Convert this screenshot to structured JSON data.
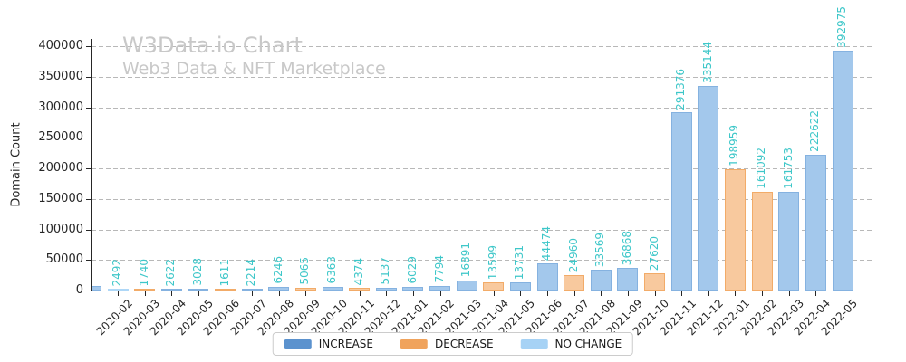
{
  "watermark": {
    "title": "W3Data.io Chart",
    "subtitle": "Web3 Data & NFT Marketplace",
    "color": "#c8c8c8"
  },
  "axes": {
    "ylabel": "Domain Count",
    "yticks": [
      0,
      50000,
      100000,
      150000,
      200000,
      250000,
      300000,
      350000,
      400000
    ],
    "grid_color": "#b8b8b8"
  },
  "legend": {
    "items": [
      {
        "label": "INCREASE",
        "color": "#5b92ce",
        "key": "INCREASE"
      },
      {
        "label": "DECREASE",
        "color": "#f0a35c",
        "key": "DECREASE"
      },
      {
        "label": "NO CHANGE",
        "color": "#a6d2f5",
        "key": "NOCHANGE"
      }
    ]
  },
  "chart_data": {
    "type": "bar",
    "title": "W3Data.io Chart",
    "subtitle": "Web3 Data & NFT Marketplace",
    "xlabel": "",
    "ylabel": "Domain Count",
    "categories": [
      "2020-02",
      "2020-03",
      "2020-04",
      "2020-05",
      "2020-06",
      "2020-07",
      "2020-08",
      "2020-09",
      "2020-10",
      "2020-11",
      "2020-12",
      "2021-01",
      "2021-02",
      "2021-03",
      "2021-04",
      "2021-05",
      "2021-06",
      "2021-07",
      "2021-08",
      "2021-09",
      "2021-10",
      "2021-11",
      "2021-12",
      "2022-01",
      "2022-02",
      "2022-03",
      "2022-04",
      "2022-05"
    ],
    "values": [
      2492,
      1740,
      2622,
      3028,
      1611,
      2214,
      6246,
      5065,
      6363,
      4374,
      5137,
      6029,
      7794,
      16891,
      13599,
      13731,
      44474,
      24960,
      33569,
      36868,
      27620,
      291376,
      335144,
      198959,
      161092,
      161753,
      222622,
      392975
    ],
    "change_series": [
      "NOCHANGE",
      "DECREASE",
      "INCREASE",
      "INCREASE",
      "DECREASE",
      "INCREASE",
      "INCREASE",
      "DECREASE",
      "INCREASE",
      "DECREASE",
      "INCREASE",
      "INCREASE",
      "INCREASE",
      "INCREASE",
      "DECREASE",
      "INCREASE",
      "INCREASE",
      "DECREASE",
      "INCREASE",
      "INCREASE",
      "DECREASE",
      "INCREASE",
      "INCREASE",
      "DECREASE",
      "DECREASE",
      "INCREASE",
      "INCREASE",
      "INCREASE"
    ],
    "partial_unlabeled_bar_at_left_edge": {
      "approx_value": 7400,
      "series": "INCREASE"
    },
    "ylim": [
      0,
      412000
    ],
    "yticks": [
      0,
      50000,
      100000,
      150000,
      200000,
      250000,
      300000,
      350000,
      400000
    ],
    "grid": "horizontal-dashed",
    "legend_position": "bottom-center",
    "value_label_color": "#3ec7c9",
    "bar_colors": {
      "INCREASE": {
        "fill": "#a3c8ec",
        "edge": "#85b2e0"
      },
      "DECREASE": {
        "fill": "#f8c99e",
        "edge": "#f2ab68"
      },
      "NOCHANGE": {
        "fill": "#cfe7fb",
        "edge": "#aed7f7"
      }
    }
  }
}
